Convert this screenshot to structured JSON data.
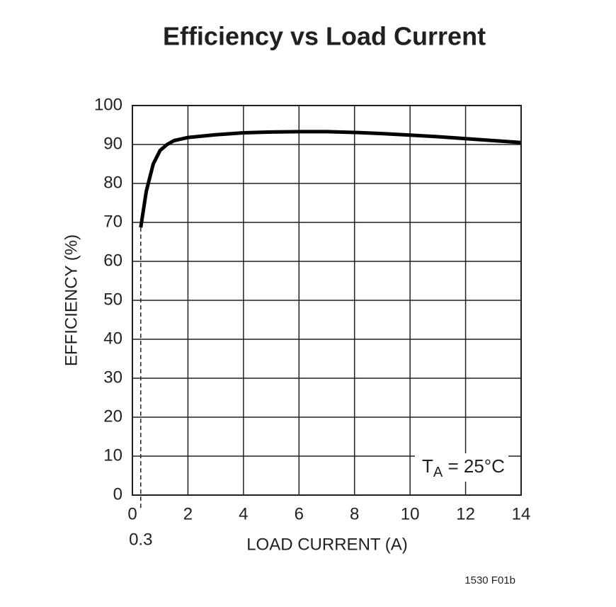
{
  "chart_data": {
    "type": "line",
    "title": "Efficiency vs Load Current",
    "x_label": "LOAD CURRENT (A)",
    "y_label": "EFFICIENCY (%)",
    "x": [
      0.3,
      0.5,
      0.75,
      1,
      1.25,
      1.5,
      2,
      3,
      4,
      5,
      6,
      7,
      8,
      9,
      10,
      11,
      12,
      13,
      14
    ],
    "series": [
      {
        "name": "Efficiency",
        "color": "#000000",
        "values": [
          68.7,
          78,
          85,
          88.5,
          90,
          91,
          91.8,
          92.5,
          93,
          93.2,
          93.3,
          93.3,
          93.1,
          92.8,
          92.4,
          92,
          91.5,
          91,
          90.5
        ]
      }
    ],
    "xlim": [
      0,
      14
    ],
    "xticks": [
      0,
      2,
      4,
      6,
      8,
      10,
      12,
      14
    ],
    "ylim": [
      0,
      100
    ],
    "yticks": [
      0,
      10,
      20,
      30,
      40,
      50,
      60,
      70,
      80,
      90,
      100
    ],
    "grid": true,
    "xmarker": 0.3,
    "annotation": {
      "main": "T",
      "subscript": "A",
      "rest": " = 25°C"
    },
    "footnote": "1530 F01b"
  }
}
